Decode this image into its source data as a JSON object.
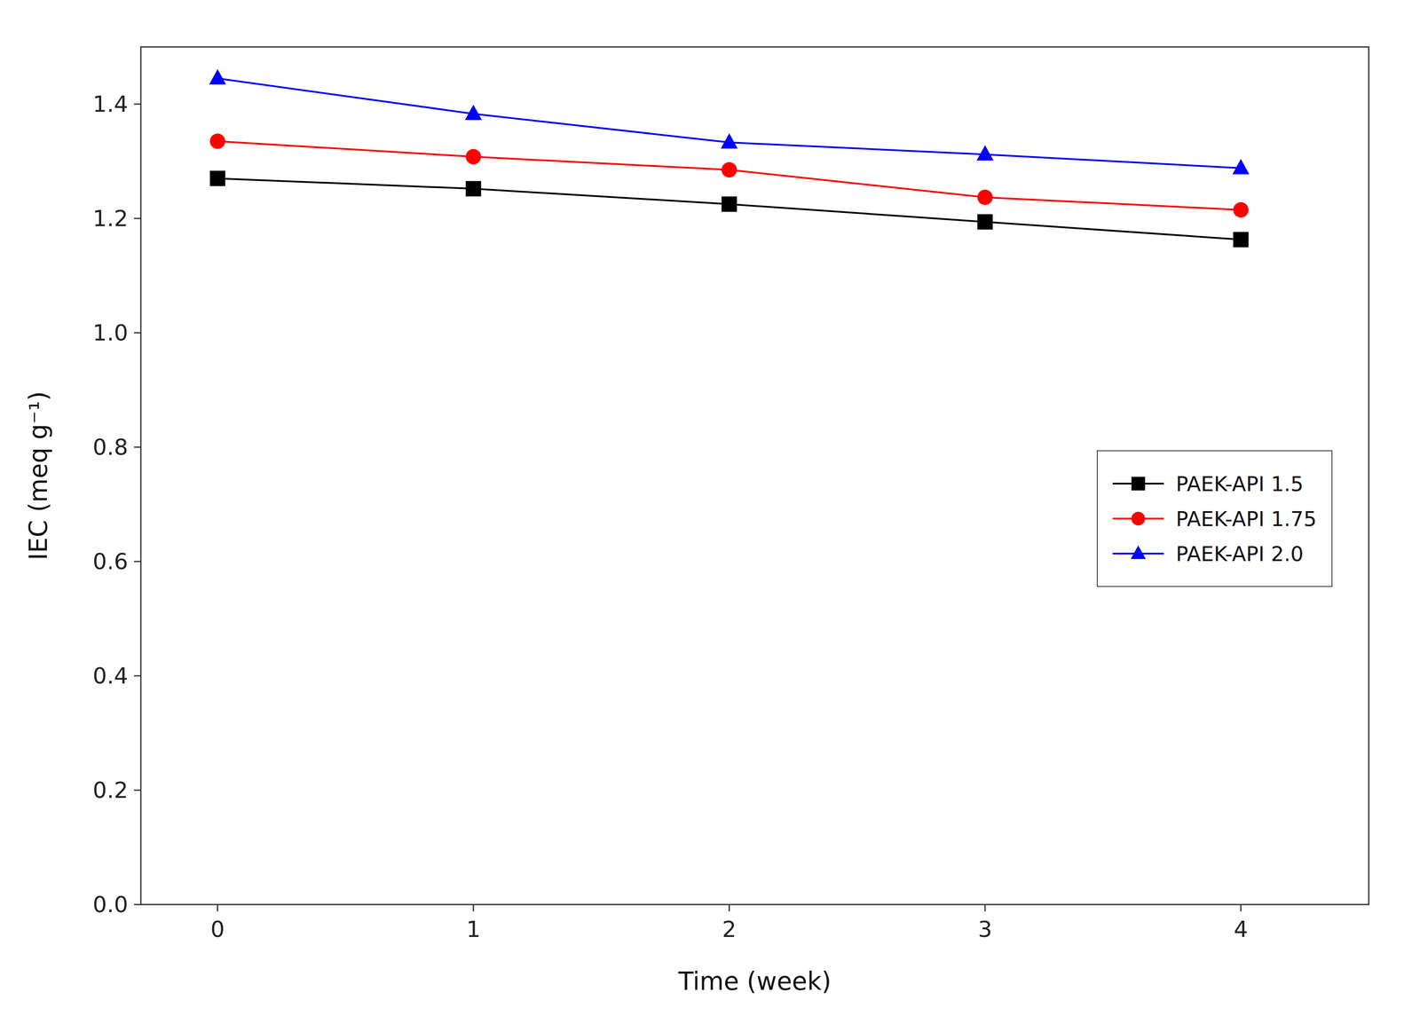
{
  "chart_data": {
    "type": "line",
    "x_label": "Time (week)",
    "y_label": "IEC (meq g⁻¹)",
    "x": [
      0,
      1,
      2,
      3,
      4
    ],
    "series": [
      {
        "name": "PAEK-API 1.5",
        "color": "#000000",
        "marker": "square",
        "values": [
          1.27,
          1.252,
          1.225,
          1.194,
          1.163
        ]
      },
      {
        "name": "PAEK-API 1.75",
        "color": "#ff0000",
        "marker": "circle",
        "values": [
          1.335,
          1.308,
          1.285,
          1.237,
          1.215
        ]
      },
      {
        "name": "PAEK-API 2.0",
        "color": "#0000ff",
        "marker": "triangle",
        "values": [
          1.445,
          1.383,
          1.333,
          1.312,
          1.288
        ]
      }
    ],
    "xlim": [
      -0.3,
      4.5
    ],
    "ylim": [
      0,
      1.5
    ],
    "xticks": [
      0,
      1,
      2,
      3,
      4
    ],
    "yticks": [
      {
        "value": 0,
        "label": "0.0"
      },
      0.2,
      0.4,
      0.6,
      0.8,
      {
        "value": 1,
        "label": "1.0"
      },
      1.2,
      1.4
    ],
    "grid": false,
    "legend": "right"
  }
}
